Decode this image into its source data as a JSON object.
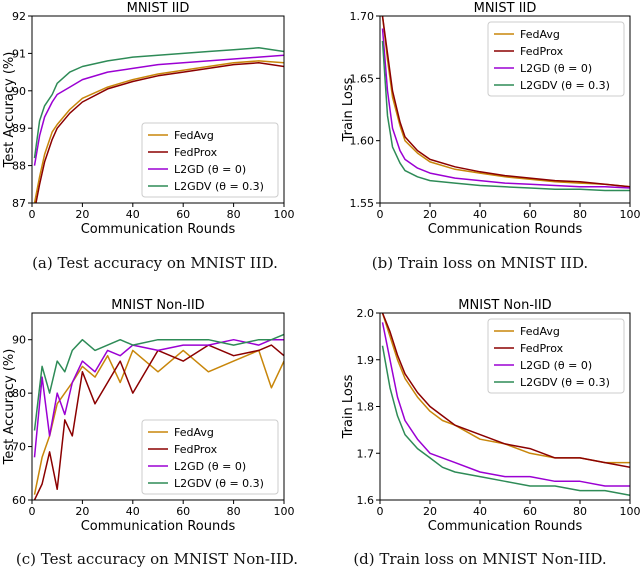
{
  "colors": {
    "fedavg": "#c8860a",
    "fedprox": "#8b0000",
    "l2gd": "#9b00d3",
    "l2gdv": "#2e8b57"
  },
  "captions": [
    "(a)  Test accuracy on MNIST IID.",
    "(b)  Train loss on MNIST IID.",
    "(c)  Test accuracy on MNIST Non-IID.",
    "(d)  Train loss on MNIST Non-IID."
  ],
  "chart_data": [
    {
      "type": "line",
      "title": "MNIST IID",
      "xlabel": "Communication Rounds",
      "ylabel": "Test Accuracy (%)",
      "xlim": [
        0,
        100
      ],
      "ylim": [
        87,
        92
      ],
      "xticks": [
        0,
        20,
        40,
        60,
        80,
        100
      ],
      "yticks": [
        87,
        88,
        89,
        90,
        91,
        92
      ],
      "legend": "lower-right",
      "series": [
        {
          "name": "FedAvg",
          "color_key": "fedavg",
          "x": [
            1,
            3,
            5,
            8,
            10,
            15,
            20,
            30,
            40,
            50,
            60,
            70,
            80,
            90,
            100
          ],
          "values": [
            87.0,
            87.7,
            88.3,
            88.9,
            89.1,
            89.5,
            89.8,
            90.1,
            90.3,
            90.45,
            90.55,
            90.65,
            90.75,
            90.8,
            90.75
          ]
        },
        {
          "name": "FedProx",
          "color_key": "fedprox",
          "x": [
            1,
            3,
            5,
            8,
            10,
            15,
            20,
            30,
            40,
            50,
            60,
            70,
            80,
            90,
            100
          ],
          "values": [
            86.8,
            87.5,
            88.1,
            88.7,
            89.0,
            89.4,
            89.7,
            90.05,
            90.25,
            90.4,
            90.5,
            90.6,
            90.7,
            90.75,
            90.65
          ]
        },
        {
          "name": "L2GD (θ = 0)",
          "color_key": "l2gd",
          "x": [
            1,
            3,
            5,
            8,
            10,
            15,
            20,
            30,
            40,
            50,
            60,
            70,
            80,
            90,
            100
          ],
          "values": [
            88.0,
            88.8,
            89.3,
            89.7,
            89.9,
            90.1,
            90.3,
            90.5,
            90.6,
            90.7,
            90.75,
            90.8,
            90.85,
            90.9,
            90.95
          ]
        },
        {
          "name": "L2GDV (θ = 0.3)",
          "color_key": "l2gdv",
          "x": [
            1,
            3,
            5,
            8,
            10,
            15,
            20,
            30,
            40,
            50,
            60,
            70,
            80,
            90,
            100
          ],
          "values": [
            88.2,
            89.2,
            89.6,
            89.9,
            90.2,
            90.5,
            90.65,
            90.8,
            90.9,
            90.95,
            91.0,
            91.05,
            91.1,
            91.15,
            91.05
          ]
        }
      ]
    },
    {
      "type": "line",
      "title": "MNIST IID",
      "xlabel": "Communication Rounds",
      "ylabel": "Train Loss",
      "xlim": [
        0,
        100
      ],
      "ylim": [
        1.55,
        1.7
      ],
      "xticks": [
        0,
        20,
        40,
        60,
        80,
        100
      ],
      "yticks": [
        1.55,
        1.6,
        1.65,
        1.7
      ],
      "legend": "top-right",
      "series": [
        {
          "name": "FedAvg",
          "color_key": "fedavg",
          "x": [
            1,
            3,
            5,
            8,
            10,
            15,
            20,
            30,
            40,
            50,
            60,
            70,
            80,
            90,
            100
          ],
          "values": [
            1.7,
            1.665,
            1.635,
            1.612,
            1.6,
            1.59,
            1.583,
            1.577,
            1.574,
            1.571,
            1.569,
            1.567,
            1.566,
            1.565,
            1.563
          ]
        },
        {
          "name": "FedProx",
          "color_key": "fedprox",
          "x": [
            1,
            3,
            5,
            8,
            10,
            15,
            20,
            30,
            40,
            50,
            60,
            70,
            80,
            90,
            100
          ],
          "values": [
            1.7,
            1.67,
            1.64,
            1.615,
            1.603,
            1.592,
            1.585,
            1.579,
            1.575,
            1.572,
            1.57,
            1.568,
            1.567,
            1.565,
            1.563
          ]
        },
        {
          "name": "L2GD (θ = 0)",
          "color_key": "l2gd",
          "x": [
            1,
            3,
            5,
            8,
            10,
            15,
            20,
            30,
            40,
            50,
            60,
            70,
            80,
            90,
            100
          ],
          "values": [
            1.69,
            1.64,
            1.61,
            1.592,
            1.585,
            1.578,
            1.574,
            1.57,
            1.568,
            1.566,
            1.565,
            1.564,
            1.563,
            1.563,
            1.562
          ]
        },
        {
          "name": "L2GDV (θ = 0.3)",
          "color_key": "l2gdv",
          "x": [
            1,
            3,
            5,
            8,
            10,
            15,
            20,
            30,
            40,
            50,
            60,
            70,
            80,
            90,
            100
          ],
          "values": [
            1.68,
            1.62,
            1.595,
            1.582,
            1.576,
            1.571,
            1.568,
            1.566,
            1.564,
            1.563,
            1.562,
            1.561,
            1.561,
            1.56,
            1.56
          ]
        }
      ]
    },
    {
      "type": "line",
      "title": "MNIST Non-IID",
      "xlabel": "Communication Rounds",
      "ylabel": "Test Accuracy (%)",
      "xlim": [
        0,
        100
      ],
      "ylim": [
        60,
        95
      ],
      "xticks": [
        0,
        20,
        40,
        60,
        80,
        100
      ],
      "yticks": [
        60,
        70,
        80,
        90
      ],
      "legend": "lower-right",
      "series": [
        {
          "name": "FedAvg",
          "color_key": "fedavg",
          "x": [
            1,
            4,
            7,
            10,
            13,
            16,
            20,
            25,
            30,
            35,
            40,
            50,
            60,
            70,
            80,
            90,
            95,
            100
          ],
          "values": [
            61,
            68,
            72,
            78,
            80,
            82,
            85,
            83,
            87,
            82,
            88,
            84,
            88,
            84,
            86,
            88,
            81,
            86
          ]
        },
        {
          "name": "FedProx",
          "color_key": "fedprox",
          "x": [
            1,
            4,
            7,
            10,
            13,
            16,
            20,
            25,
            30,
            35,
            40,
            50,
            60,
            70,
            80,
            90,
            95,
            100
          ],
          "values": [
            60,
            63,
            69,
            62,
            75,
            72,
            84,
            78,
            82,
            86,
            80,
            88,
            86,
            89,
            87,
            88,
            89,
            87
          ]
        },
        {
          "name": "L2GD (θ = 0)",
          "color_key": "l2gd",
          "x": [
            1,
            4,
            7,
            10,
            13,
            16,
            20,
            25,
            30,
            35,
            40,
            50,
            60,
            70,
            80,
            90,
            95,
            100
          ],
          "values": [
            68,
            83,
            72,
            80,
            76,
            82,
            86,
            84,
            88,
            87,
            89,
            88,
            89,
            89,
            90,
            89,
            90,
            90
          ]
        },
        {
          "name": "L2GDV (θ = 0.3)",
          "color_key": "l2gdv",
          "x": [
            1,
            4,
            7,
            10,
            13,
            16,
            20,
            25,
            30,
            35,
            40,
            50,
            60,
            70,
            80,
            90,
            95,
            100
          ],
          "values": [
            73,
            85,
            80,
            86,
            84,
            88,
            90,
            88,
            89,
            90,
            89,
            90,
            90,
            90,
            89,
            90,
            90,
            91
          ]
        }
      ]
    },
    {
      "type": "line",
      "title": "MNIST Non-IID",
      "xlabel": "Communication Rounds",
      "ylabel": "Train Loss",
      "xlim": [
        0,
        100
      ],
      "ylim": [
        1.6,
        2.0
      ],
      "xticks": [
        0,
        20,
        40,
        60,
        80,
        100
      ],
      "yticks": [
        1.6,
        1.7,
        1.8,
        1.9,
        2.0
      ],
      "legend": "top-right",
      "series": [
        {
          "name": "FedAvg",
          "color_key": "fedavg",
          "x": [
            1,
            4,
            7,
            10,
            15,
            20,
            25,
            30,
            40,
            50,
            60,
            70,
            80,
            90,
            100
          ],
          "values": [
            2.0,
            1.95,
            1.9,
            1.86,
            1.82,
            1.79,
            1.77,
            1.76,
            1.73,
            1.72,
            1.7,
            1.69,
            1.69,
            1.68,
            1.68
          ]
        },
        {
          "name": "FedProx",
          "color_key": "fedprox",
          "x": [
            1,
            4,
            7,
            10,
            15,
            20,
            25,
            30,
            40,
            50,
            60,
            70,
            80,
            90,
            100
          ],
          "values": [
            2.0,
            1.96,
            1.91,
            1.87,
            1.83,
            1.8,
            1.78,
            1.76,
            1.74,
            1.72,
            1.71,
            1.69,
            1.69,
            1.68,
            1.67
          ]
        },
        {
          "name": "L2GD (θ = 0)",
          "color_key": "l2gd",
          "x": [
            1,
            4,
            7,
            10,
            15,
            20,
            25,
            30,
            40,
            50,
            60,
            70,
            80,
            90,
            100
          ],
          "values": [
            1.98,
            1.9,
            1.82,
            1.77,
            1.73,
            1.7,
            1.69,
            1.68,
            1.66,
            1.65,
            1.65,
            1.64,
            1.64,
            1.63,
            1.63
          ]
        },
        {
          "name": "L2GDV (θ = 0.3)",
          "color_key": "l2gdv",
          "x": [
            1,
            4,
            7,
            10,
            15,
            20,
            25,
            30,
            40,
            50,
            60,
            70,
            80,
            90,
            100
          ],
          "values": [
            1.93,
            1.84,
            1.78,
            1.74,
            1.71,
            1.69,
            1.67,
            1.66,
            1.65,
            1.64,
            1.63,
            1.63,
            1.62,
            1.62,
            1.61
          ]
        }
      ]
    }
  ]
}
